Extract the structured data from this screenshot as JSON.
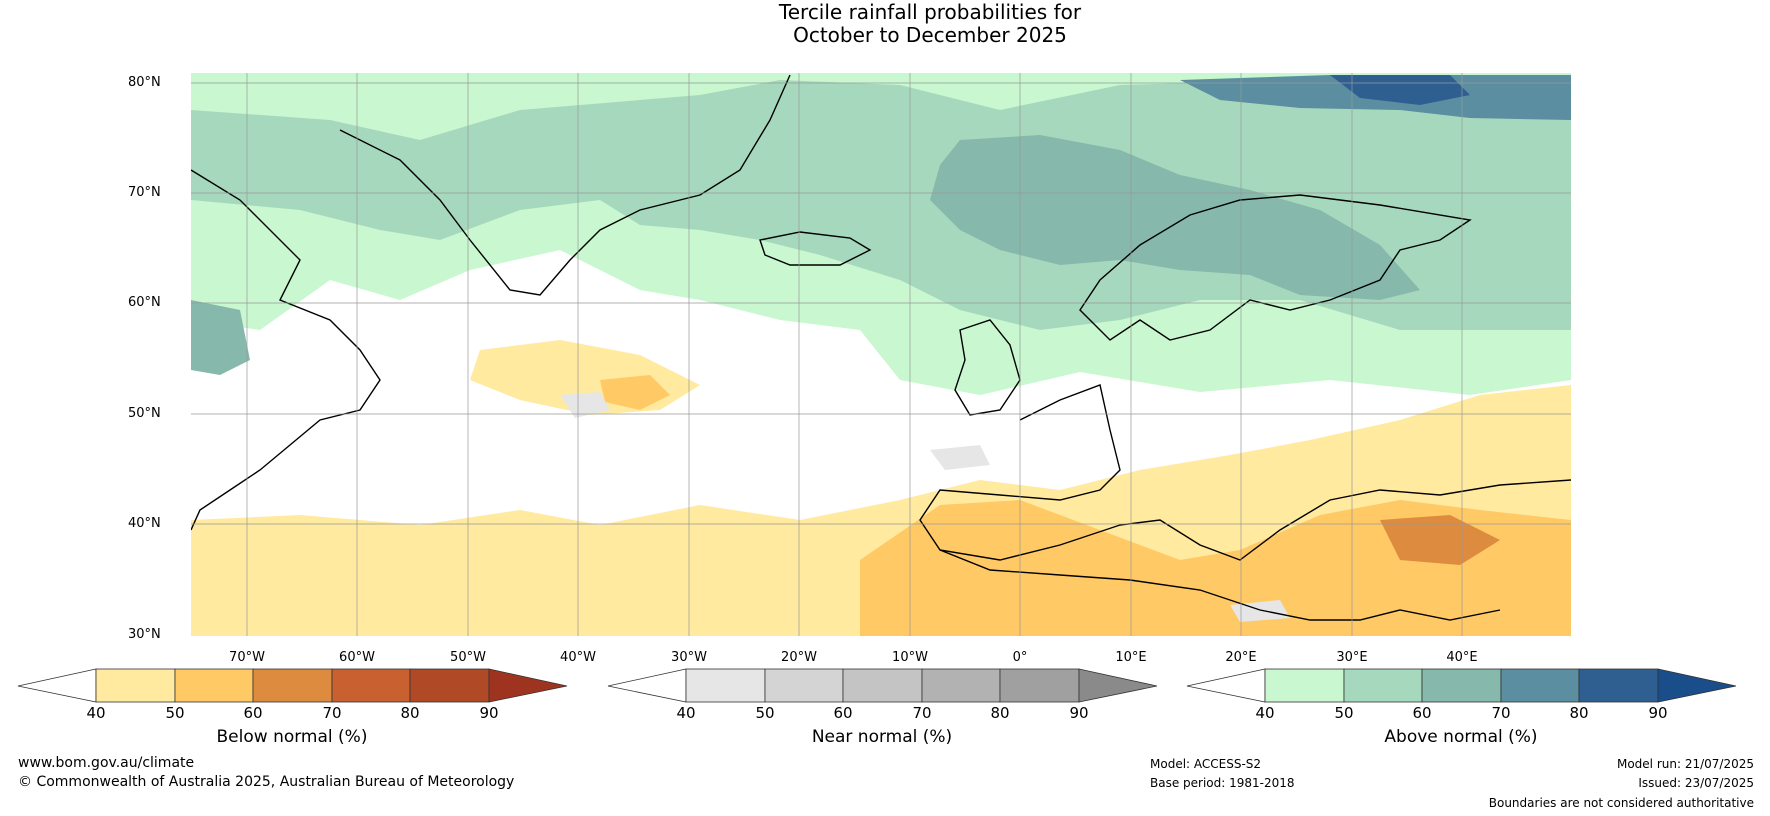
{
  "title_line1": "Tercile rainfall probabilities for",
  "title_line2": "October to December 2025",
  "lat_labels": [
    "80°N",
    "70°N",
    "60°N",
    "50°N",
    "40°N",
    "30°N"
  ],
  "lon_labels": [
    "70°W",
    "60°W",
    "50°W",
    "40°W",
    "30°W",
    "20°W",
    "10°W",
    "0°",
    "10°E",
    "20°E",
    "30°E",
    "40°E"
  ],
  "colorbars": [
    {
      "title": "Below normal (%)",
      "ticks": [
        "40",
        "50",
        "60",
        "70",
        "80",
        "90"
      ],
      "colors": [
        "#ffffff",
        "#ffeaa0",
        "#ffc966",
        "#dd8b3f",
        "#c9602f",
        "#b04a26",
        "#9e3420"
      ]
    },
    {
      "title": "Near normal (%)",
      "ticks": [
        "40",
        "50",
        "60",
        "70",
        "80",
        "90"
      ],
      "colors": [
        "#ffffff",
        "#e6e6e6",
        "#d4d4d4",
        "#c4c4c4",
        "#b2b2b2",
        "#a0a0a0",
        "#8a8a8a"
      ]
    },
    {
      "title": "Above normal (%)",
      "ticks": [
        "40",
        "50",
        "60",
        "70",
        "80",
        "90"
      ],
      "colors": [
        "#ffffff",
        "#c8f7d0",
        "#a6d8bd",
        "#86b8ab",
        "#5b8ea0",
        "#2f5f91",
        "#1a4e8a"
      ]
    }
  ],
  "footer": {
    "website": "www.bom.gov.au/climate",
    "copyright": "© Commonwealth of Australia 2025, Australian Bureau of Meteorology",
    "model": "Model: ACCESS-S2",
    "base_period": "Base period: 1981-2018",
    "model_run": "Model run: 21/07/2025",
    "issued": "Issued: 23/07/2025",
    "disclaimer": "Boundaries are not considered authoritative"
  }
}
